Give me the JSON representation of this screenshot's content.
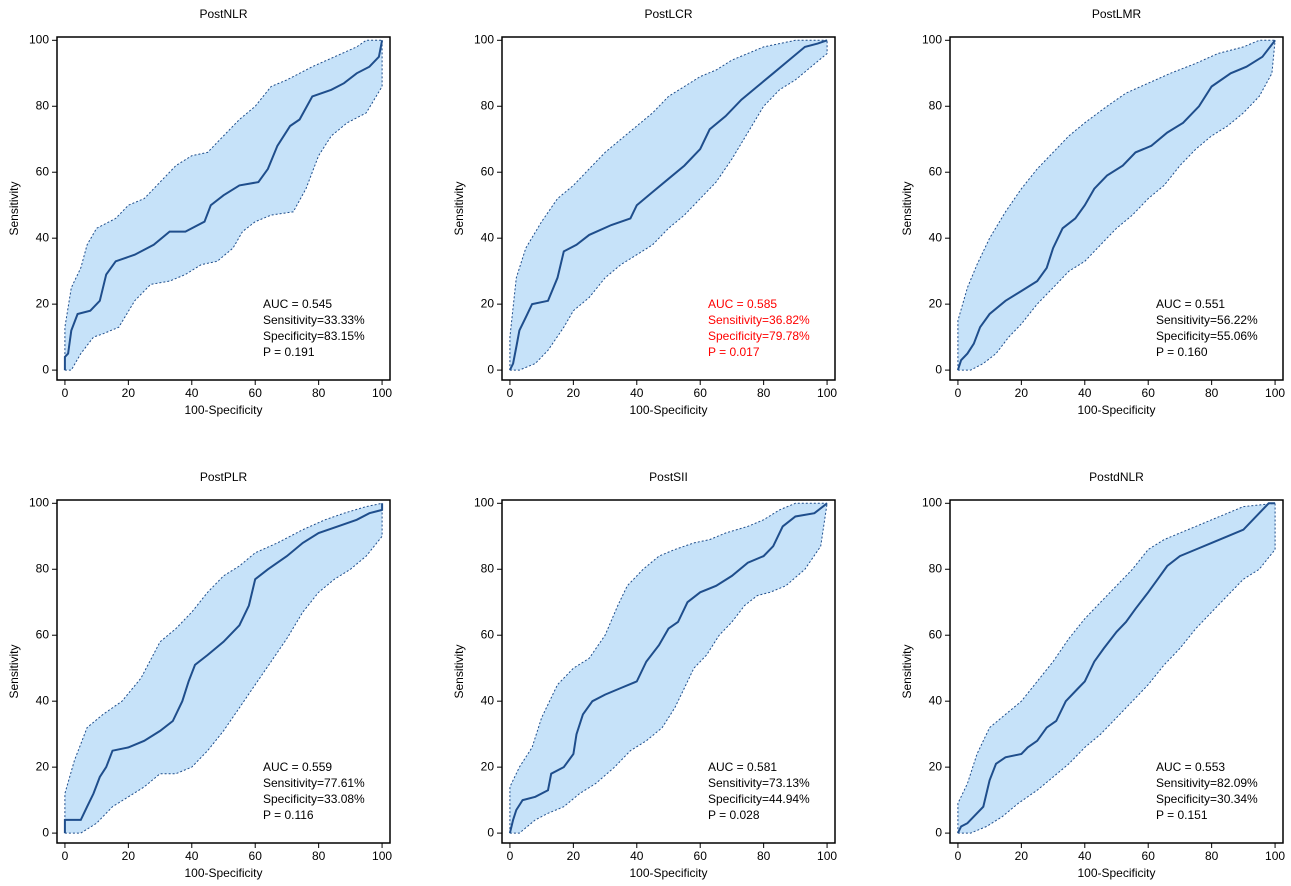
{
  "chart_data": [
    {
      "type": "roc",
      "title": "PostNLR",
      "x_label": "100-Specificity",
      "y_label": "Sensitivity",
      "xlim": [
        -2.5,
        102.5
      ],
      "ylim": [
        -3,
        101
      ],
      "xticks": [
        0,
        20,
        40,
        60,
        80,
        100
      ],
      "yticks": [
        0,
        20,
        40,
        60,
        80,
        100
      ],
      "color": "#1f4e8c",
      "band_color": "#c6e2f9",
      "x": [
        0,
        0,
        1,
        2,
        4,
        8,
        11,
        13,
        16,
        22,
        28,
        33,
        38,
        44,
        46,
        50,
        55,
        61,
        64,
        67,
        71,
        74,
        78,
        84,
        88,
        92,
        96,
        99,
        100
      ],
      "values": [
        0,
        4,
        5,
        12,
        17,
        18,
        21,
        29,
        33,
        35,
        38,
        42,
        42,
        45,
        50,
        53,
        56,
        57,
        61,
        68,
        74,
        76,
        83,
        85,
        87,
        90,
        92,
        95,
        100
      ],
      "upper": {
        "x": [
          0,
          0,
          2,
          5,
          7,
          10,
          16,
          20,
          25,
          30,
          35,
          40,
          45,
          50,
          55,
          60,
          65,
          70,
          78,
          85,
          92,
          95,
          100
        ],
        "values": [
          0,
          13,
          25,
          31,
          38,
          43,
          46,
          50,
          52,
          57,
          62,
          65,
          66,
          71,
          76,
          80,
          86,
          88,
          92,
          95,
          98,
          100,
          100
        ]
      },
      "lower": {
        "x": [
          0,
          2,
          5,
          9,
          12,
          17,
          22,
          27,
          33,
          38,
          43,
          48,
          53,
          56,
          60,
          65,
          72,
          76,
          80,
          84,
          89,
          95,
          100,
          100
        ],
        "values": [
          0,
          0,
          5,
          10,
          11,
          13,
          21,
          26,
          27,
          29,
          32,
          33,
          37,
          42,
          45,
          47,
          48,
          55,
          65,
          71,
          75,
          78,
          86,
          100
        ]
      },
      "annotations": [
        "AUC = 0.545",
        "Sensitivity=33.33%",
        "Specificity=83.15%",
        "P = 0.191"
      ],
      "annotation_color": "#000000"
    },
    {
      "type": "roc",
      "title": "PostLCR",
      "x_label": "100-Specificity",
      "y_label": "Sensitivity",
      "xlim": [
        -2.5,
        102.5
      ],
      "ylim": [
        -3,
        101
      ],
      "xticks": [
        0,
        20,
        40,
        60,
        80,
        100
      ],
      "yticks": [
        0,
        20,
        40,
        60,
        80,
        100
      ],
      "color": "#1f4e8c",
      "band_color": "#c6e2f9",
      "x": [
        0,
        1,
        2,
        3,
        5,
        7,
        12,
        15,
        17,
        21,
        25,
        32,
        38,
        40,
        45,
        50,
        55,
        60,
        63,
        68,
        73,
        78,
        83,
        88,
        93,
        97,
        100
      ],
      "values": [
        0,
        2,
        7,
        12,
        16,
        20,
        21,
        28,
        36,
        38,
        41,
        44,
        46,
        50,
        54,
        58,
        62,
        67,
        73,
        77,
        82,
        86,
        90,
        94,
        98,
        99,
        100
      ],
      "upper": {
        "x": [
          0,
          0,
          2,
          5,
          10,
          15,
          20,
          25,
          30,
          35,
          40,
          45,
          50,
          55,
          60,
          65,
          70,
          75,
          80,
          85,
          90,
          100
        ],
        "values": [
          0,
          10,
          28,
          37,
          45,
          52,
          56,
          61,
          66,
          70,
          74,
          78,
          83,
          86,
          89,
          91,
          94,
          96,
          98,
          99,
          100,
          100
        ]
      },
      "lower": {
        "x": [
          0,
          3,
          8,
          12,
          17,
          20,
          25,
          30,
          35,
          40,
          45,
          50,
          55,
          60,
          65,
          70,
          75,
          80,
          85,
          90,
          95,
          100,
          100
        ],
        "values": [
          0,
          0,
          2,
          6,
          13,
          18,
          22,
          28,
          32,
          35,
          38,
          43,
          47,
          52,
          57,
          64,
          72,
          80,
          85,
          88,
          92,
          96,
          100
        ]
      },
      "annotations": [
        "AUC = 0.585",
        "Sensitivity=36.82%",
        "Specificity=79.78%",
        "P = 0.017"
      ],
      "annotation_color": "#ff0000"
    },
    {
      "type": "roc",
      "title": "PostLMR",
      "x_label": "100-Specificity",
      "y_label": "Sensitivity",
      "xlim": [
        -2.5,
        102.5
      ],
      "ylim": [
        -3,
        101
      ],
      "xticks": [
        0,
        20,
        40,
        60,
        80,
        100
      ],
      "yticks": [
        0,
        20,
        40,
        60,
        80,
        100
      ],
      "color": "#1f4e8c",
      "band_color": "#c6e2f9",
      "x": [
        0,
        1,
        3,
        5,
        7,
        10,
        15,
        20,
        25,
        28,
        30,
        33,
        37,
        40,
        43,
        47,
        52,
        56,
        61,
        66,
        71,
        76,
        80,
        86,
        91,
        96,
        100
      ],
      "values": [
        0,
        3,
        5,
        8,
        13,
        17,
        21,
        24,
        27,
        31,
        37,
        43,
        46,
        50,
        55,
        59,
        62,
        66,
        68,
        72,
        75,
        80,
        86,
        90,
        92,
        95,
        100
      ],
      "upper": {
        "x": [
          0,
          0,
          3,
          6,
          10,
          15,
          20,
          25,
          30,
          35,
          40,
          47,
          53,
          60,
          67,
          75,
          82,
          90,
          95,
          100
        ],
        "values": [
          0,
          15,
          25,
          32,
          40,
          48,
          55,
          61,
          66,
          71,
          75,
          80,
          84,
          87,
          90,
          93,
          96,
          98,
          100,
          100
        ]
      },
      "lower": {
        "x": [
          0,
          4,
          8,
          12,
          16,
          20,
          25,
          30,
          35,
          40,
          45,
          50,
          55,
          60,
          65,
          70,
          75,
          80,
          85,
          90,
          95,
          99,
          100
        ],
        "values": [
          0,
          0,
          2,
          5,
          10,
          14,
          20,
          25,
          30,
          33,
          38,
          43,
          47,
          52,
          56,
          62,
          67,
          71,
          74,
          78,
          83,
          90,
          100
        ]
      },
      "annotations": [
        "AUC = 0.551",
        "Sensitivity=56.22%",
        "Specificity=55.06%",
        "P = 0.160"
      ],
      "annotation_color": "#000000"
    },
    {
      "type": "roc",
      "title": "PostPLR",
      "x_label": "100-Specificity",
      "y_label": "Sensitivity",
      "xlim": [
        -2.5,
        102.5
      ],
      "ylim": [
        -3,
        101
      ],
      "xticks": [
        0,
        20,
        40,
        60,
        80,
        100
      ],
      "yticks": [
        0,
        20,
        40,
        60,
        80,
        100
      ],
      "color": "#1f4e8c",
      "band_color": "#c6e2f9",
      "x": [
        0,
        0,
        5,
        7,
        9,
        11,
        13,
        15,
        20,
        25,
        30,
        34,
        37,
        39,
        41,
        45,
        50,
        55,
        58,
        60,
        64,
        70,
        75,
        80,
        86,
        92,
        96,
        100,
        100
      ],
      "values": [
        0,
        4,
        4,
        8,
        12,
        17,
        20,
        25,
        26,
        28,
        31,
        34,
        40,
        46,
        51,
        54,
        58,
        63,
        69,
        77,
        80,
        84,
        88,
        91,
        93,
        95,
        97,
        98,
        100
      ],
      "upper": {
        "x": [
          0,
          0,
          3,
          7,
          12,
          18,
          24,
          30,
          35,
          40,
          45,
          50,
          55,
          60,
          67,
          75,
          82,
          88,
          95,
          100
        ],
        "values": [
          0,
          12,
          22,
          32,
          36,
          40,
          47,
          58,
          62,
          67,
          73,
          78,
          81,
          85,
          88,
          92,
          95,
          97,
          99,
          100
        ]
      },
      "lower": {
        "x": [
          0,
          5,
          10,
          15,
          20,
          25,
          30,
          35,
          40,
          45,
          50,
          55,
          60,
          65,
          70,
          75,
          80,
          85,
          90,
          95,
          100,
          100
        ],
        "values": [
          0,
          0,
          3,
          8,
          11,
          14,
          18,
          18,
          20,
          25,
          31,
          38,
          45,
          52,
          59,
          67,
          73,
          77,
          80,
          84,
          90,
          100
        ]
      },
      "annotations": [
        "AUC = 0.559",
        "Sensitivity=77.61%",
        "Specificity=33.08%",
        "P = 0.116"
      ],
      "annotation_color": "#000000"
    },
    {
      "type": "roc",
      "title": "PostSII",
      "x_label": "100-Specificity",
      "y_label": "Sensitivity",
      "xlim": [
        -2.5,
        102.5
      ],
      "ylim": [
        -3,
        101
      ],
      "xticks": [
        0,
        20,
        40,
        60,
        80,
        100
      ],
      "yticks": [
        0,
        20,
        40,
        60,
        80,
        100
      ],
      "color": "#1f4e8c",
      "band_color": "#c6e2f9",
      "x": [
        0,
        1,
        2,
        4,
        8,
        12,
        13,
        17,
        20,
        21,
        23,
        26,
        30,
        35,
        40,
        43,
        47,
        50,
        53,
        56,
        60,
        65,
        70,
        75,
        80,
        83,
        86,
        90,
        96,
        100
      ],
      "values": [
        0,
        4,
        7,
        10,
        11,
        13,
        18,
        20,
        24,
        30,
        36,
        40,
        42,
        44,
        46,
        52,
        57,
        62,
        64,
        70,
        73,
        75,
        78,
        82,
        84,
        87,
        93,
        96,
        97,
        100
      ],
      "upper": {
        "x": [
          0,
          0,
          3,
          7,
          10,
          15,
          20,
          25,
          30,
          34,
          37,
          42,
          47,
          52,
          58,
          63,
          68,
          75,
          80,
          85,
          90,
          100
        ],
        "values": [
          0,
          14,
          20,
          26,
          35,
          45,
          50,
          53,
          60,
          69,
          75,
          80,
          84,
          86,
          88,
          89,
          91,
          93,
          95,
          98,
          100,
          100
        ]
      },
      "lower": {
        "x": [
          0,
          3,
          8,
          12,
          17,
          22,
          27,
          33,
          38,
          43,
          48,
          52,
          55,
          58,
          62,
          66,
          70,
          74,
          78,
          82,
          87,
          93,
          98,
          100
        ],
        "values": [
          0,
          0,
          4,
          6,
          8,
          12,
          15,
          20,
          25,
          28,
          32,
          38,
          44,
          50,
          54,
          60,
          64,
          69,
          72,
          73,
          75,
          80,
          87,
          100
        ]
      },
      "annotations": [
        "AUC = 0.581",
        "Sensitivity=73.13%",
        "Specificity=44.94%",
        "P = 0.028"
      ],
      "annotation_color": "#000000"
    },
    {
      "type": "roc",
      "title": "PostdNLR",
      "x_label": "100-Specificity",
      "y_label": "Sensitivity",
      "xlim": [
        -2.5,
        102.5
      ],
      "ylim": [
        -3,
        101
      ],
      "xticks": [
        0,
        20,
        40,
        60,
        80,
        100
      ],
      "yticks": [
        0,
        20,
        40,
        60,
        80,
        100
      ],
      "color": "#1f4e8c",
      "band_color": "#c6e2f9",
      "x": [
        0,
        1,
        3,
        5,
        8,
        10,
        12,
        15,
        20,
        22,
        25,
        28,
        31,
        34,
        38,
        40,
        43,
        46,
        50,
        53,
        56,
        60,
        63,
        66,
        70,
        75,
        80,
        85,
        90,
        95,
        98,
        100
      ],
      "values": [
        0,
        2,
        3,
        5,
        8,
        16,
        21,
        23,
        24,
        26,
        28,
        32,
        34,
        40,
        44,
        46,
        52,
        56,
        61,
        64,
        68,
        73,
        77,
        81,
        84,
        86,
        88,
        90,
        92,
        97,
        100,
        100
      ],
      "upper": {
        "x": [
          0,
          0,
          3,
          6,
          10,
          15,
          20,
          25,
          30,
          35,
          40,
          45,
          50,
          55,
          60,
          65,
          70,
          75,
          80,
          85,
          90,
          100
        ],
        "values": [
          0,
          9,
          15,
          24,
          32,
          36,
          40,
          46,
          52,
          59,
          65,
          70,
          75,
          80,
          86,
          89,
          91,
          93,
          95,
          97,
          99,
          100
        ]
      },
      "lower": {
        "x": [
          0,
          4,
          9,
          14,
          19,
          25,
          30,
          35,
          40,
          45,
          50,
          55,
          60,
          65,
          70,
          75,
          80,
          85,
          90,
          95,
          100,
          100
        ],
        "values": [
          0,
          0,
          2,
          5,
          9,
          13,
          17,
          21,
          26,
          30,
          35,
          40,
          45,
          51,
          56,
          62,
          67,
          72,
          77,
          80,
          86,
          100
        ]
      },
      "annotations": [
        "AUC = 0.553",
        "Sensitivity=82.09%",
        "Specificity=30.34%",
        "P = 0.151"
      ],
      "annotation_color": "#000000"
    }
  ]
}
